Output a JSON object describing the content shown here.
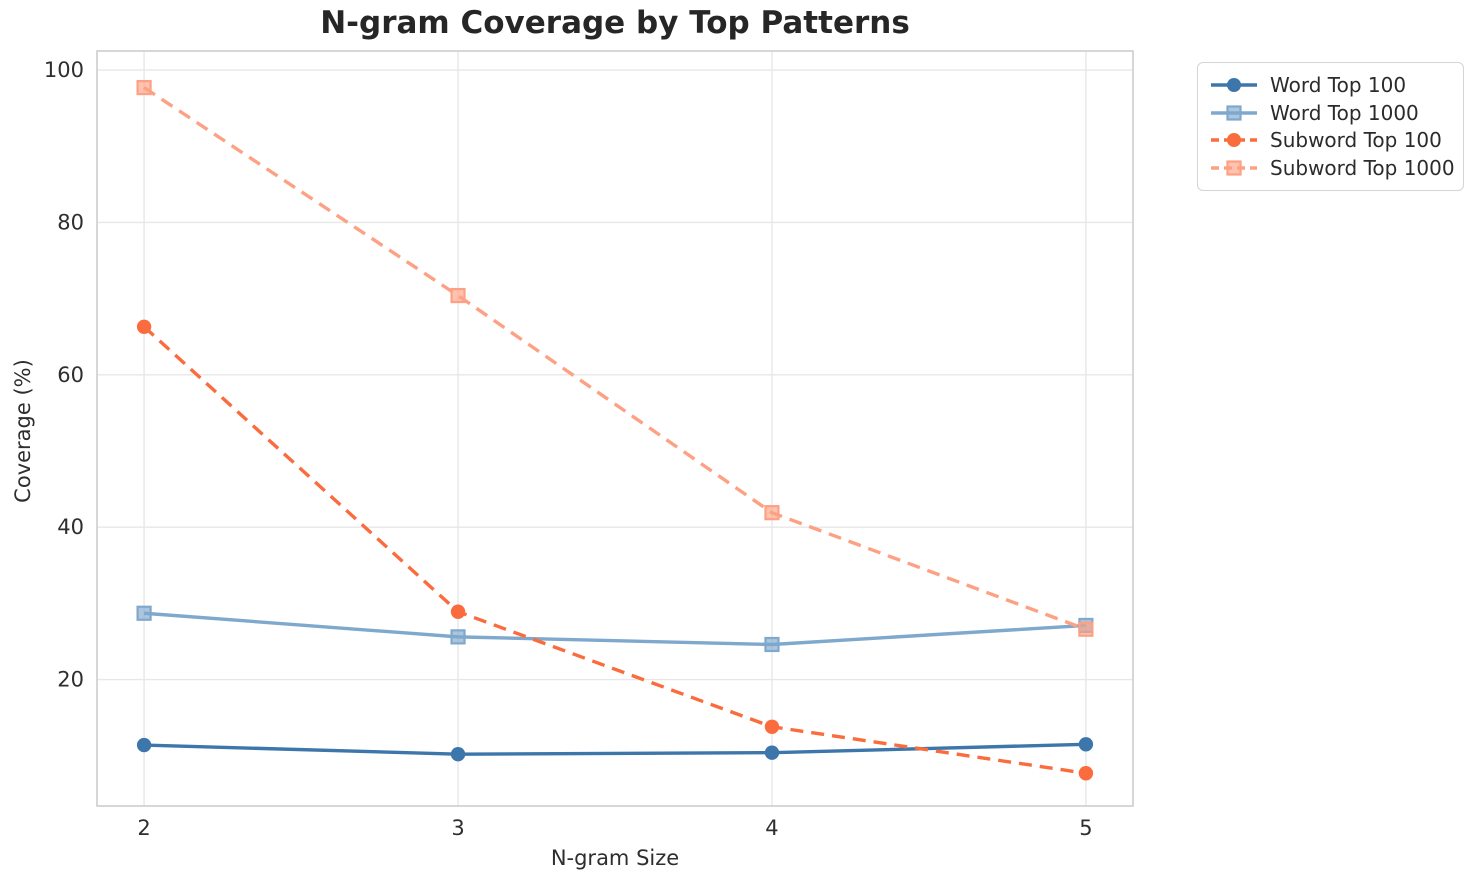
{
  "chart_data": {
    "type": "line",
    "title": "N-gram Coverage by Top Patterns",
    "xlabel": "N-gram Size",
    "ylabel": "Coverage (%)",
    "x": [
      2,
      3,
      4,
      5
    ],
    "x_tick_labels": [
      "2",
      "3",
      "4",
      "5"
    ],
    "y_ticks": [
      20,
      40,
      60,
      80,
      100
    ],
    "xlim": [
      1.85,
      5.15
    ],
    "ylim": [
      3.4,
      102.5
    ],
    "grid": true,
    "legend_position": "outside-top-right",
    "series": [
      {
        "name": "Word Top 100",
        "values": [
          11.4,
          10.2,
          10.4,
          11.5
        ],
        "color": "#3d76ab",
        "marker": "circle",
        "line_style": "solid"
      },
      {
        "name": "Word Top 1000",
        "values": [
          28.7,
          25.6,
          24.6,
          27.1
        ],
        "color": "#7fa8cd",
        "marker": "square",
        "line_style": "solid"
      },
      {
        "name": "Subword Top 100",
        "values": [
          66.3,
          28.9,
          13.8,
          7.7
        ],
        "color": "#fa6c3e",
        "marker": "circle",
        "line_style": "dashed"
      },
      {
        "name": "Subword Top 1000",
        "values": [
          97.7,
          70.4,
          41.9,
          26.6
        ],
        "color": "#fda184",
        "marker": "square",
        "line_style": "dashed"
      }
    ],
    "colors": {
      "grid": "#e7e7e7",
      "spine": "#cdcdcd",
      "text": "#2e2e2e",
      "title": "#262626"
    }
  }
}
